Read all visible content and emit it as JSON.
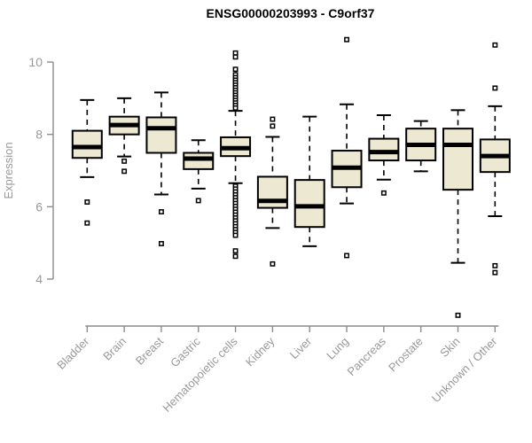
{
  "chart_data": {
    "type": "boxplot",
    "title": "ENSG00000203993 - C9orf37",
    "ylabel": "Expression",
    "xlabel": "",
    "yticks": [
      4,
      6,
      8,
      10
    ],
    "yaxis_range": [
      4,
      10
    ],
    "grid": false,
    "legend": "none",
    "colors": {
      "box_fill": "#EDE8D1",
      "box_border": "#000000",
      "median": "#000000",
      "whisker": "#000000",
      "outlier_stroke": "#000000",
      "axis": "#8C8C8C",
      "tick_label": "#999999",
      "title": "#000000",
      "background": "#FFFFFF"
    },
    "categories": [
      "Bladder",
      "Brain",
      "Breast",
      "Gastric",
      "Hematopoietic cells",
      "Kidney",
      "Liver",
      "Lung",
      "Pancreas",
      "Prostate",
      "Skin",
      "Unknown / Other"
    ],
    "boxes": [
      {
        "category": "Bladder",
        "whisker_low": 6.82,
        "q1": 7.35,
        "median": 7.65,
        "q3": 8.1,
        "whisker_high": 8.95,
        "outliers": [
          6.13,
          5.55
        ]
      },
      {
        "category": "Brain",
        "whisker_low": 7.39,
        "q1": 8.0,
        "median": 8.26,
        "q3": 8.49,
        "whisker_high": 9.0,
        "outliers": [
          7.26,
          6.98
        ]
      },
      {
        "category": "Breast",
        "whisker_low": 6.34,
        "q1": 7.49,
        "median": 8.17,
        "q3": 8.47,
        "whisker_high": 9.16,
        "outliers": [
          5.86,
          4.98
        ]
      },
      {
        "category": "Gastric",
        "whisker_low": 6.5,
        "q1": 7.04,
        "median": 7.33,
        "q3": 7.49,
        "whisker_high": 7.84,
        "outliers": [
          6.17
        ]
      },
      {
        "category": "Hematopoietic cells",
        "whisker_low": 6.65,
        "q1": 7.4,
        "median": 7.62,
        "q3": 7.92,
        "whisker_high": 8.65,
        "outliers": [
          10.25,
          10.14,
          9.8,
          9.65,
          9.57,
          9.5,
          9.43,
          9.36,
          9.29,
          9.22,
          9.15,
          9.08,
          9.01,
          8.94,
          8.87,
          8.8,
          8.73,
          6.57,
          6.49,
          6.41,
          6.33,
          6.25,
          6.17,
          6.09,
          6.01,
          5.93,
          5.85,
          5.77,
          5.69,
          5.61,
          5.53,
          5.45,
          5.37,
          5.29,
          5.21,
          4.78,
          4.63
        ]
      },
      {
        "category": "Kidney",
        "whisker_low": 5.41,
        "q1": 5.97,
        "median": 6.16,
        "q3": 6.83,
        "whisker_high": 7.93,
        "outliers": [
          8.42,
          8.23,
          4.42
        ]
      },
      {
        "category": "Liver",
        "whisker_low": 4.91,
        "q1": 5.44,
        "median": 6.01,
        "q3": 6.74,
        "whisker_high": 8.49,
        "outliers": []
      },
      {
        "category": "Lung",
        "whisker_low": 6.09,
        "q1": 6.54,
        "median": 7.08,
        "q3": 7.55,
        "whisker_high": 8.83,
        "outliers": [
          10.62,
          4.65
        ]
      },
      {
        "category": "Pancreas",
        "whisker_low": 6.75,
        "q1": 7.28,
        "median": 7.51,
        "q3": 7.88,
        "whisker_high": 8.53,
        "outliers": [
          6.38
        ]
      },
      {
        "category": "Prostate",
        "whisker_low": 6.98,
        "q1": 7.28,
        "median": 7.71,
        "q3": 8.16,
        "whisker_high": 8.37,
        "outliers": []
      },
      {
        "category": "Skin",
        "whisker_low": 4.45,
        "q1": 6.47,
        "median": 7.71,
        "q3": 8.16,
        "whisker_high": 8.67,
        "outliers": [
          3.0
        ]
      },
      {
        "category": "Unknown / Other",
        "whisker_low": 5.74,
        "q1": 6.96,
        "median": 7.4,
        "q3": 7.86,
        "whisker_high": 8.78,
        "outliers": [
          10.47,
          9.28,
          4.37,
          4.18
        ]
      }
    ]
  }
}
